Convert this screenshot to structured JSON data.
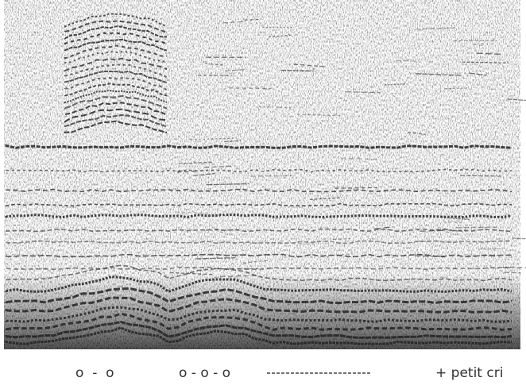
{
  "annotations": [
    "o  -  o",
    "o - o - o",
    "+ petit cri"
  ]
}
